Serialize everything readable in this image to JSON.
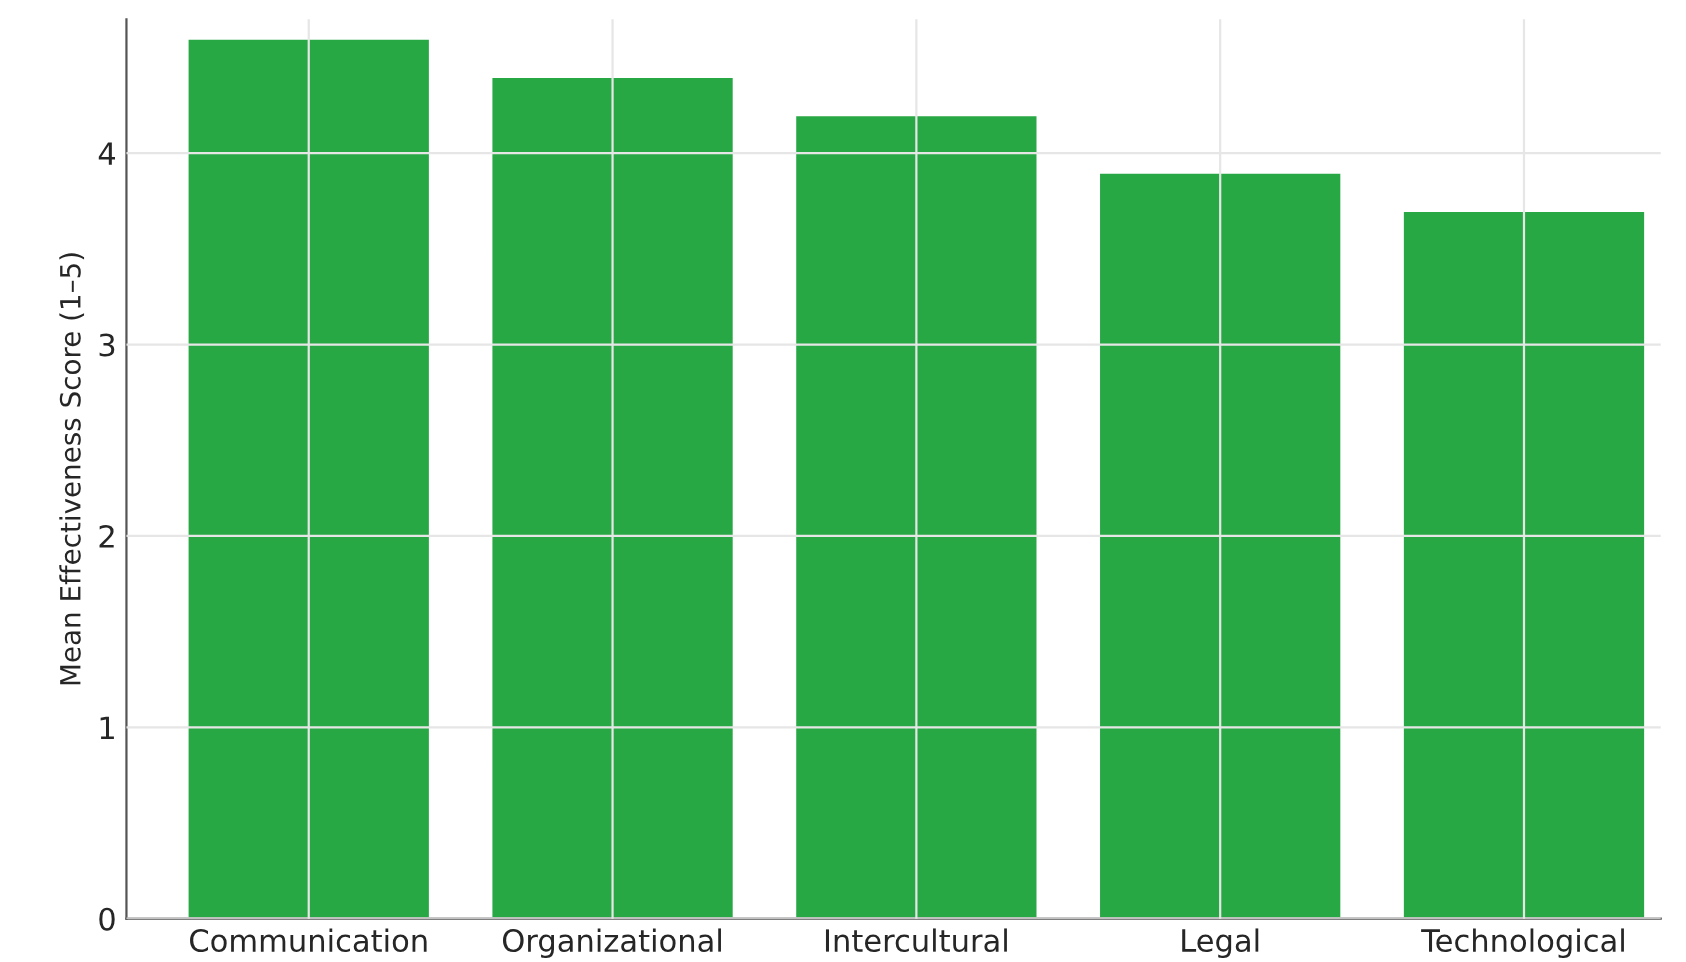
{
  "chart_data": {
    "type": "bar",
    "ylabel": "Mean Effectiveness Score (1–5)",
    "categories": [
      "Communication",
      "Organizational",
      "Intercultural",
      "Legal",
      "Technological"
    ],
    "values": [
      4.6,
      4.4,
      4.2,
      3.9,
      3.7
    ],
    "color": "#28a745",
    "ylim": [
      0,
      4.7
    ],
    "yticks": [
      0,
      1,
      2,
      3,
      4
    ],
    "grid": true
  }
}
